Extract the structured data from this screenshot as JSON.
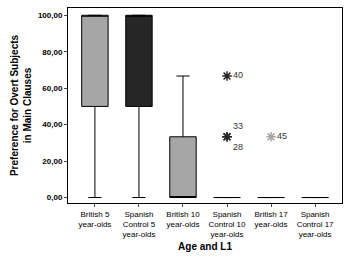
{
  "chart_data": {
    "type": "box",
    "x_label": "Age and L1",
    "y_label": "Preference for Overt Subjects in Main Clauses",
    "categories": [
      "British 5 year-olds",
      "Spanish Control 5 year-olds",
      "British 10 year-olds",
      "Spanish Control 10 year-olds",
      "British 17 year-olds",
      "Spanish Control 17 year-olds"
    ],
    "q1": [
      50,
      50,
      0,
      0,
      0,
      0
    ],
    "median": [
      100,
      100,
      0,
      0,
      0,
      0
    ],
    "q3": [
      100,
      100,
      33.33,
      0,
      0,
      0
    ],
    "min": [
      0,
      0,
      0,
      0,
      0,
      0
    ],
    "max": [
      100,
      100,
      66.67,
      0,
      0,
      0
    ],
    "colors": [
      "#a6a6a6",
      "#262626",
      "#a6a6a6",
      "#262626",
      "#a6a6a6",
      "#262626"
    ],
    "outliers": [
      {
        "category": "Spanish Control 10 year-olds",
        "value": 66.67,
        "label": "40",
        "color": "#262626"
      },
      {
        "category": "Spanish Control 10 year-olds",
        "value": 33.33,
        "label": "33",
        "color": "#262626"
      },
      {
        "category": "Spanish Control 10 year-olds",
        "value": 33.33,
        "label": "28",
        "color": "#262626"
      },
      {
        "category": "British 17 year-olds",
        "value": 33.33,
        "label": "45",
        "color": "#a6a6a6"
      }
    ],
    "marker": "asterisk",
    "ylim": [
      -3,
      104
    ],
    "yticks": [
      {
        "value": 0,
        "label": "0,00"
      },
      {
        "value": 20,
        "label": "20,00"
      },
      {
        "value": 40,
        "label": "40,00"
      },
      {
        "value": 60,
        "label": "60,00"
      },
      {
        "value": 80,
        "label": "80,00"
      },
      {
        "value": 100,
        "label": "100,00"
      }
    ],
    "grid": false
  }
}
